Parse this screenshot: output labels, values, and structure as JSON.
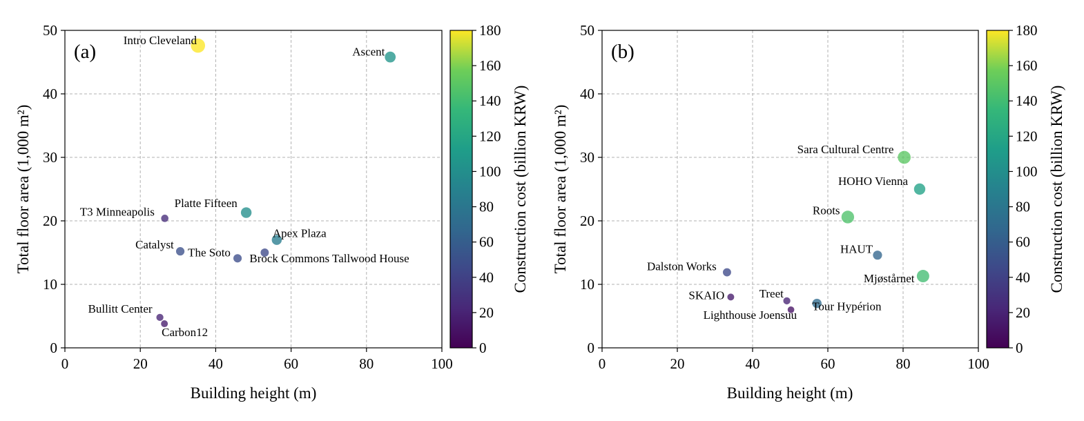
{
  "chart_data": [
    {
      "type": "scatter",
      "panel_label": "(a)",
      "xlabel": "Building height (m)",
      "ylabel": "Total floor area (1,000 m²)",
      "colorbar_label": "Construction cost (billion KRW)",
      "xlim": [
        0,
        100
      ],
      "ylim": [
        0,
        50
      ],
      "clim": [
        0,
        180
      ],
      "xticks": [
        "0",
        "20",
        "40",
        "60",
        "80",
        "100"
      ],
      "yticks": [
        "0",
        "10",
        "20",
        "30",
        "40",
        "50"
      ],
      "cticks": [
        "0",
        "20",
        "40",
        "60",
        "80",
        "100",
        "120",
        "140",
        "160",
        "180"
      ],
      "grid": true,
      "colormap": "viridis",
      "points": [
        {
          "label": "Intro Cleveland",
          "x": 35.3,
          "y": 47.6,
          "cost": 180
        },
        {
          "label": "Ascent",
          "x": 86.3,
          "y": 45.8,
          "cost": 105
        },
        {
          "label": "Platte Fifteen",
          "x": 48.1,
          "y": 21.3,
          "cost": 100
        },
        {
          "label": "T3 Minneapolis",
          "x": 26.5,
          "y": 20.4,
          "cost": 25
        },
        {
          "label": "Apex Plaza",
          "x": 56.2,
          "y": 17.0,
          "cost": 85
        },
        {
          "label": "Catalyst",
          "x": 30.6,
          "y": 15.2,
          "cost": 50
        },
        {
          "label": "Brock Commons Tallwood House",
          "x": 53.0,
          "y": 15.0,
          "cost": 45
        },
        {
          "label": "The Soto",
          "x": 45.8,
          "y": 14.1,
          "cost": 48
        },
        {
          "label": "Bullitt Center",
          "x": 25.2,
          "y": 4.8,
          "cost": 20
        },
        {
          "label": "Carbon12",
          "x": 26.4,
          "y": 3.8,
          "cost": 15
        }
      ]
    },
    {
      "type": "scatter",
      "panel_label": "(b)",
      "xlabel": "Building height (m)",
      "ylabel": "Total floor area (1,000 m²)",
      "colorbar_label": "Construction cost (billion KRW)",
      "xlim": [
        0,
        100
      ],
      "ylim": [
        0,
        50
      ],
      "clim": [
        0,
        180
      ],
      "xticks": [
        "0",
        "20",
        "40",
        "60",
        "80",
        "100"
      ],
      "yticks": [
        "0",
        "10",
        "20",
        "30",
        "40",
        "50"
      ],
      "cticks": [
        "0",
        "20",
        "40",
        "60",
        "80",
        "100",
        "120",
        "140",
        "160",
        "180"
      ],
      "grid": true,
      "colormap": "viridis",
      "points": [
        {
          "label": "Sara Cultural Centre",
          "x": 80.3,
          "y": 30.0,
          "cost": 150
        },
        {
          "label": "HOHO Vienna",
          "x": 84.4,
          "y": 25.0,
          "cost": 115
        },
        {
          "label": "Roots",
          "x": 65.3,
          "y": 20.6,
          "cost": 145
        },
        {
          "label": "HAUT",
          "x": 73.2,
          "y": 14.6,
          "cost": 65
        },
        {
          "label": "Mjøstårnet",
          "x": 85.3,
          "y": 11.3,
          "cost": 140
        },
        {
          "label": "Dalston Works",
          "x": 33.2,
          "y": 11.9,
          "cost": 45
        },
        {
          "label": "SKAIO",
          "x": 34.2,
          "y": 8.0,
          "cost": 15
        },
        {
          "label": "Treet",
          "x": 49.1,
          "y": 7.4,
          "cost": 20
        },
        {
          "label": "Tour Hypérion",
          "x": 57.1,
          "y": 7.0,
          "cost": 70
        },
        {
          "label": "Lighthouse Joensuu",
          "x": 50.2,
          "y": 6.0,
          "cost": 10
        }
      ]
    }
  ]
}
